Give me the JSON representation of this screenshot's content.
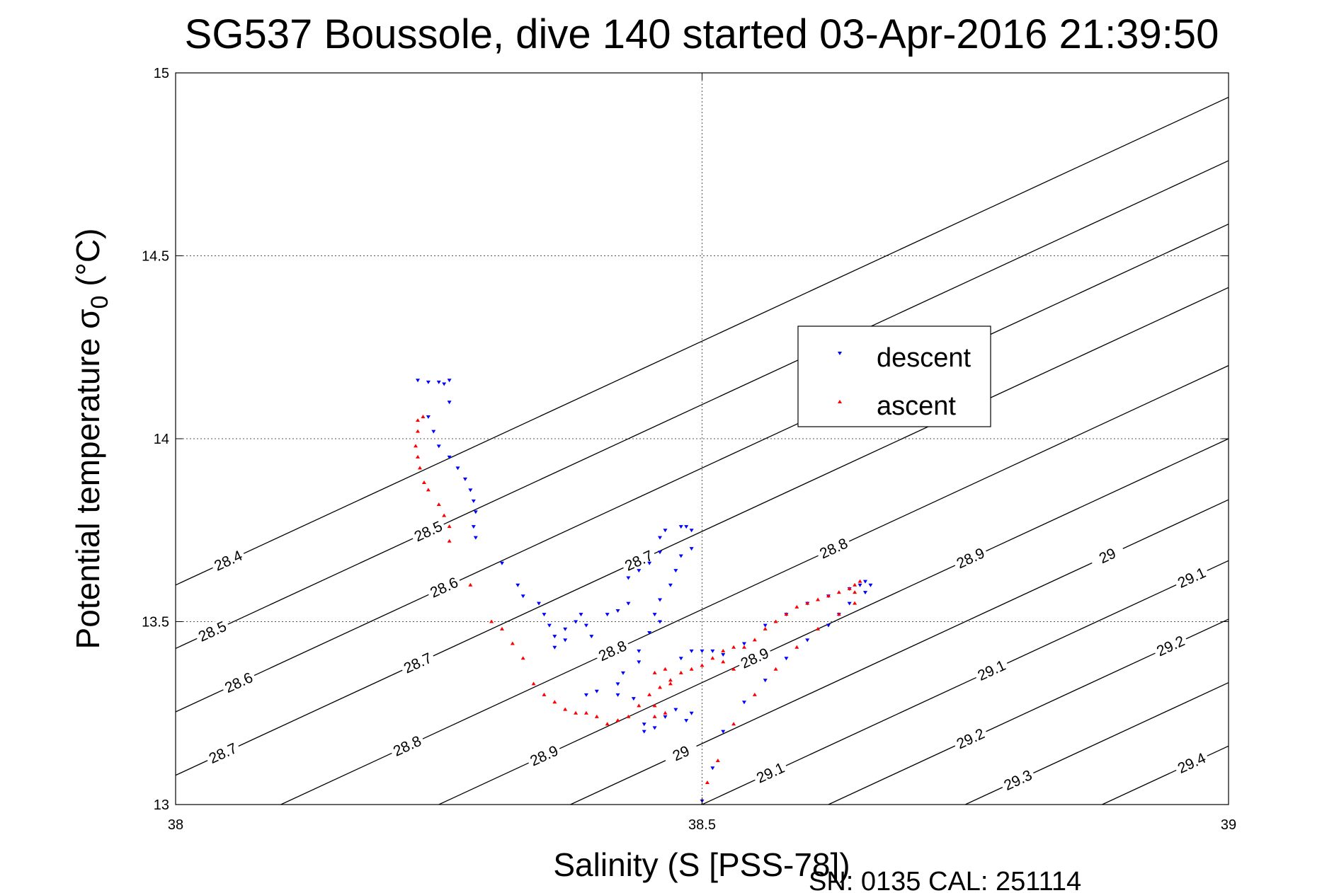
{
  "chart_data": {
    "type": "scatter",
    "title": "SG537 Boussole, dive 140 started 03-Apr-2016 21:39:50",
    "xlabel": "Salinity (S [PSS-78])",
    "ylabel_main": "Potential temperature σ",
    "ylabel_sub": "0",
    "ylabel_unit": " (°C)",
    "xlim": [
      38,
      39
    ],
    "ylim": [
      13,
      15
    ],
    "x_ticks": [
      38,
      38.5,
      39
    ],
    "x_tick_labels": [
      "38",
      "38.5",
      "39"
    ],
    "y_ticks": [
      13,
      13.5,
      14,
      14.5,
      15
    ],
    "y_tick_labels": [
      "13",
      "13.5",
      "14",
      "14.5",
      "15"
    ],
    "grid": true,
    "legend": {
      "placement": "center-right",
      "entries": [
        "descent",
        "ascent"
      ]
    },
    "footer": "SN: 0135  CAL: 251114",
    "contours": [
      {
        "level": 28.4,
        "x13": 37.55,
        "slope": 0.75,
        "labels": [
          {
            "text": "28.4",
            "x": 38.05
          }
        ]
      },
      {
        "level": 28.5,
        "x13": 37.68,
        "slope": 0.75,
        "labels": [
          {
            "text": "28.5",
            "x": 38.035
          },
          {
            "text": "28.5",
            "x": 38.24
          }
        ]
      },
      {
        "level": 28.6,
        "x13": 37.81,
        "slope": 0.75,
        "labels": [
          {
            "text": "28.6",
            "x": 38.06
          },
          {
            "text": "28.6",
            "x": 38.255
          }
        ]
      },
      {
        "level": 28.7,
        "x13": 37.94,
        "slope": 0.75,
        "labels": [
          {
            "text": "28.7",
            "x": 38.045
          },
          {
            "text": "28.7",
            "x": 38.23
          },
          {
            "text": "28.7",
            "x": 38.44
          }
        ]
      },
      {
        "level": 28.8,
        "x13": 38.1,
        "slope": 0.75,
        "labels": [
          {
            "text": "28.8",
            "x": 38.22
          },
          {
            "text": "28.8",
            "x": 38.415
          },
          {
            "text": "28.8",
            "x": 38.625
          }
        ]
      },
      {
        "level": 28.9,
        "x13": 38.25,
        "slope": 0.75,
        "labels": [
          {
            "text": "28.9",
            "x": 38.35
          },
          {
            "text": "28.9",
            "x": 38.55
          },
          {
            "text": "28.9",
            "x": 38.755
          }
        ]
      },
      {
        "level": 29.0,
        "x13": 38.375,
        "slope": 0.75,
        "labels": [
          {
            "text": "29",
            "x": 38.48
          },
          {
            "text": "29",
            "x": 38.885
          }
        ]
      },
      {
        "level": 29.1,
        "x13": 38.5,
        "slope": 0.75,
        "labels": [
          {
            "text": "29.1",
            "x": 38.565
          },
          {
            "text": "29.1",
            "x": 38.775
          },
          {
            "text": "29.1",
            "x": 38.965
          }
        ]
      },
      {
        "level": 29.2,
        "x13": 38.62,
        "slope": 0.75,
        "labels": [
          {
            "text": "29.2",
            "x": 38.755
          },
          {
            "text": "29.2",
            "x": 38.945
          }
        ]
      },
      {
        "level": 29.3,
        "x13": 38.75,
        "slope": 0.75,
        "labels": [
          {
            "text": "29.3",
            "x": 38.8
          }
        ]
      },
      {
        "level": 29.4,
        "x13": 38.88,
        "slope": 0.75,
        "labels": [
          {
            "text": "29.4",
            "x": 38.965
          }
        ]
      }
    ],
    "series": [
      {
        "name": "descent",
        "color": "#0000ff",
        "marker": "triangle-down",
        "points": [
          [
            38.23,
            14.16
          ],
          [
            38.24,
            14.155
          ],
          [
            38.25,
            14.155
          ],
          [
            38.255,
            14.15
          ],
          [
            38.26,
            14.16
          ],
          [
            38.26,
            14.1
          ],
          [
            38.24,
            14.06
          ],
          [
            38.245,
            14.02
          ],
          [
            38.25,
            13.98
          ],
          [
            38.26,
            13.95
          ],
          [
            38.268,
            13.92
          ],
          [
            38.275,
            13.89
          ],
          [
            38.28,
            13.86
          ],
          [
            38.283,
            13.83
          ],
          [
            38.285,
            13.8
          ],
          [
            38.283,
            13.76
          ],
          [
            38.285,
            13.73
          ],
          [
            38.31,
            13.66
          ],
          [
            38.325,
            13.6
          ],
          [
            38.33,
            13.57
          ],
          [
            38.345,
            13.55
          ],
          [
            38.35,
            13.52
          ],
          [
            38.355,
            13.49
          ],
          [
            38.36,
            13.46
          ],
          [
            38.36,
            13.43
          ],
          [
            38.37,
            13.45
          ],
          [
            38.37,
            13.48
          ],
          [
            38.38,
            13.5
          ],
          [
            38.385,
            13.52
          ],
          [
            38.39,
            13.49
          ],
          [
            38.395,
            13.46
          ],
          [
            38.41,
            13.52
          ],
          [
            38.42,
            13.53
          ],
          [
            38.43,
            13.55
          ],
          [
            38.43,
            13.62
          ],
          [
            38.44,
            13.64
          ],
          [
            38.45,
            13.66
          ],
          [
            38.46,
            13.69
          ],
          [
            38.46,
            13.73
          ],
          [
            38.465,
            13.75
          ],
          [
            38.48,
            13.76
          ],
          [
            38.485,
            13.76
          ],
          [
            38.49,
            13.75
          ],
          [
            38.49,
            13.7
          ],
          [
            38.48,
            13.68
          ],
          [
            38.475,
            13.64
          ],
          [
            38.47,
            13.6
          ],
          [
            38.46,
            13.56
          ],
          [
            38.455,
            13.52
          ],
          [
            38.46,
            13.5
          ],
          [
            38.45,
            13.47
          ],
          [
            38.44,
            13.42
          ],
          [
            38.44,
            13.39
          ],
          [
            38.425,
            13.36
          ],
          [
            38.42,
            13.33
          ],
          [
            38.4,
            13.31
          ],
          [
            38.39,
            13.3
          ],
          [
            38.42,
            13.3
          ],
          [
            38.435,
            13.29
          ],
          [
            38.445,
            13.22
          ],
          [
            38.445,
            13.2
          ],
          [
            38.455,
            13.21
          ],
          [
            38.465,
            13.24
          ],
          [
            38.475,
            13.26
          ],
          [
            38.485,
            13.23
          ],
          [
            38.49,
            13.25
          ],
          [
            38.48,
            13.4
          ],
          [
            38.49,
            13.42
          ],
          [
            38.5,
            13.42
          ],
          [
            38.51,
            13.42
          ],
          [
            38.52,
            13.41
          ],
          [
            38.54,
            13.44
          ],
          [
            38.56,
            13.49
          ],
          [
            38.58,
            13.52
          ],
          [
            38.6,
            13.55
          ],
          [
            38.62,
            13.57
          ],
          [
            38.64,
            13.59
          ],
          [
            38.65,
            13.6
          ],
          [
            38.655,
            13.61
          ],
          [
            38.66,
            13.6
          ],
          [
            38.655,
            13.58
          ],
          [
            38.64,
            13.55
          ],
          [
            38.63,
            13.52
          ],
          [
            38.62,
            13.49
          ],
          [
            38.6,
            13.45
          ],
          [
            38.58,
            13.4
          ],
          [
            38.56,
            13.34
          ],
          [
            38.54,
            13.28
          ],
          [
            38.52,
            13.2
          ],
          [
            38.51,
            13.1
          ],
          [
            38.5,
            13.01
          ]
        ]
      },
      {
        "name": "ascent",
        "color": "#ff0000",
        "marker": "triangle-up",
        "points": [
          [
            38.23,
            14.05
          ],
          [
            38.235,
            14.06
          ],
          [
            38.23,
            14.02
          ],
          [
            38.228,
            13.98
          ],
          [
            38.23,
            13.95
          ],
          [
            38.232,
            13.92
          ],
          [
            38.236,
            13.88
          ],
          [
            38.24,
            13.86
          ],
          [
            38.25,
            13.82
          ],
          [
            38.255,
            13.79
          ],
          [
            38.26,
            13.76
          ],
          [
            38.26,
            13.72
          ],
          [
            38.28,
            13.6
          ],
          [
            38.3,
            13.5
          ],
          [
            38.31,
            13.48
          ],
          [
            38.32,
            13.44
          ],
          [
            38.33,
            13.4
          ],
          [
            38.34,
            13.33
          ],
          [
            38.35,
            13.3
          ],
          [
            38.36,
            13.28
          ],
          [
            38.37,
            13.26
          ],
          [
            38.38,
            13.25
          ],
          [
            38.39,
            13.25
          ],
          [
            38.4,
            13.24
          ],
          [
            38.41,
            13.22
          ],
          [
            38.42,
            13.23
          ],
          [
            38.43,
            13.24
          ],
          [
            38.44,
            13.27
          ],
          [
            38.45,
            13.3
          ],
          [
            38.46,
            13.32
          ],
          [
            38.47,
            13.33
          ],
          [
            38.48,
            13.36
          ],
          [
            38.49,
            13.37
          ],
          [
            38.5,
            13.38
          ],
          [
            38.51,
            13.4
          ],
          [
            38.52,
            13.42
          ],
          [
            38.53,
            13.43
          ],
          [
            38.52,
            13.39
          ],
          [
            38.53,
            13.37
          ],
          [
            38.54,
            13.43
          ],
          [
            38.55,
            13.45
          ],
          [
            38.56,
            13.48
          ],
          [
            38.57,
            13.5
          ],
          [
            38.58,
            13.52
          ],
          [
            38.59,
            13.54
          ],
          [
            38.6,
            13.55
          ],
          [
            38.61,
            13.56
          ],
          [
            38.62,
            13.57
          ],
          [
            38.63,
            13.58
          ],
          [
            38.64,
            13.59
          ],
          [
            38.645,
            13.6
          ],
          [
            38.65,
            13.61
          ],
          [
            38.645,
            13.58
          ],
          [
            38.645,
            13.55
          ],
          [
            38.63,
            13.52
          ],
          [
            38.61,
            13.48
          ],
          [
            38.59,
            13.43
          ],
          [
            38.57,
            13.37
          ],
          [
            38.55,
            13.3
          ],
          [
            38.53,
            13.22
          ],
          [
            38.515,
            13.12
          ],
          [
            38.505,
            13.06
          ],
          [
            38.5,
            13.0
          ],
          [
            38.455,
            13.24
          ],
          [
            38.465,
            13.25
          ],
          [
            38.455,
            13.27
          ],
          [
            38.455,
            13.36
          ],
          [
            38.465,
            13.37
          ],
          [
            38.47,
            13.34
          ]
        ]
      }
    ]
  }
}
